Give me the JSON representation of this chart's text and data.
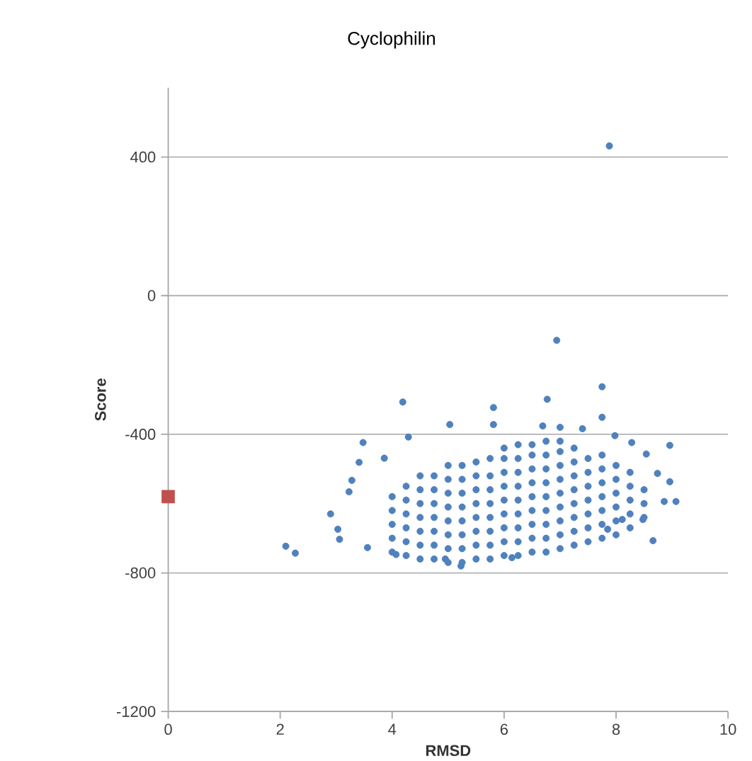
{
  "chart_data": {
    "type": "scatter",
    "title": "Cyclophilin",
    "xlabel": "RMSD",
    "ylabel": "Score",
    "xlim": [
      0,
      10
    ],
    "xticks": [
      0,
      2,
      4,
      6,
      8,
      10
    ],
    "ylim": [
      -1200,
      600
    ],
    "yticks": [
      -1200,
      -800,
      -400,
      0,
      400
    ],
    "grid": "y",
    "series": [
      {
        "color": "#4f81bd",
        "marker": "circle",
        "x": [
          7.88,
          6.94,
          7.75,
          7.75,
          6.77,
          5.81,
          5.81,
          4.19,
          5.03,
          6.69,
          7.0,
          7.4,
          7.98,
          8.28,
          8.96,
          3.48,
          4.29,
          3.41,
          3.86,
          3.28,
          3.23,
          2.9,
          3.03,
          3.06,
          2.1,
          2.27,
          8.66,
          8.96,
          9.07,
          8.86,
          8.74,
          8.54,
          5.23,
          4.95,
          6.14,
          3.56,
          4.07,
          8.11,
          8.48,
          7.85,
          4.0,
          4.0,
          4.0,
          4.0,
          4.0,
          4.25,
          4.25,
          4.25,
          4.25,
          4.25,
          4.25,
          4.5,
          4.5,
          4.5,
          4.5,
          4.5,
          4.5,
          4.5,
          4.75,
          4.75,
          4.75,
          4.75,
          4.75,
          4.75,
          4.75,
          5.0,
          5.0,
          5.0,
          5.0,
          5.0,
          5.0,
          5.0,
          5.0,
          5.25,
          5.25,
          5.25,
          5.25,
          5.25,
          5.25,
          5.25,
          5.25,
          5.5,
          5.5,
          5.5,
          5.5,
          5.5,
          5.5,
          5.5,
          5.5,
          5.75,
          5.75,
          5.75,
          5.75,
          5.75,
          5.75,
          5.75,
          5.75,
          6.0,
          6.0,
          6.0,
          6.0,
          6.0,
          6.0,
          6.0,
          6.0,
          6.0,
          6.25,
          6.25,
          6.25,
          6.25,
          6.25,
          6.25,
          6.25,
          6.25,
          6.25,
          6.5,
          6.5,
          6.5,
          6.5,
          6.5,
          6.5,
          6.5,
          6.5,
          6.5,
          6.75,
          6.75,
          6.75,
          6.75,
          6.75,
          6.75,
          6.75,
          6.75,
          6.75,
          7.0,
          7.0,
          7.0,
          7.0,
          7.0,
          7.0,
          7.0,
          7.0,
          7.0,
          7.25,
          7.25,
          7.25,
          7.25,
          7.25,
          7.25,
          7.25,
          7.25,
          7.5,
          7.5,
          7.5,
          7.5,
          7.5,
          7.5,
          7.5,
          7.75,
          7.75,
          7.75,
          7.75,
          7.75,
          7.75,
          7.75,
          8.0,
          8.0,
          8.0,
          8.0,
          8.0,
          8.0,
          8.25,
          8.25,
          8.25,
          8.25,
          8.25,
          8.5,
          8.5,
          8.5
        ],
        "values": [
          432,
          -129,
          -263,
          -351,
          -299,
          -323,
          -372,
          -307,
          -372,
          -376,
          -380,
          -384,
          -404,
          -424,
          -432,
          -424,
          -408,
          -481,
          -469,
          -533,
          -566,
          -630,
          -674,
          -703,
          -723,
          -743,
          -707,
          -537,
          -594,
          -594,
          -513,
          -457,
          -780,
          -760,
          -756,
          -727,
          -747,
          -646,
          -646,
          -674,
          -740,
          -700,
          -660,
          -620,
          -580,
          -750,
          -710,
          -670,
          -630,
          -590,
          -550,
          -760,
          -720,
          -680,
          -640,
          -600,
          -560,
          -520,
          -760,
          -720,
          -680,
          -640,
          -600,
          -560,
          -520,
          -770,
          -730,
          -690,
          -650,
          -610,
          -570,
          -530,
          -490,
          -770,
          -730,
          -690,
          -650,
          -610,
          -570,
          -530,
          -490,
          -760,
          -720,
          -680,
          -640,
          -600,
          -560,
          -520,
          -480,
          -760,
          -720,
          -680,
          -640,
          -600,
          -560,
          -520,
          -470,
          -750,
          -710,
          -670,
          -630,
          -590,
          -550,
          -510,
          -470,
          -440,
          -750,
          -710,
          -670,
          -630,
          -590,
          -550,
          -510,
          -470,
          -430,
          -740,
          -700,
          -660,
          -620,
          -580,
          -540,
          -500,
          -460,
          -430,
          -740,
          -700,
          -660,
          -620,
          -580,
          -540,
          -500,
          -460,
          -420,
          -730,
          -690,
          -650,
          -610,
          -570,
          -530,
          -490,
          -450,
          -420,
          -720,
          -680,
          -640,
          -600,
          -560,
          -520,
          -480,
          -440,
          -710,
          -670,
          -630,
          -590,
          -550,
          -510,
          -470,
          -700,
          -660,
          -620,
          -580,
          -540,
          -500,
          -460,
          -690,
          -650,
          -610,
          -570,
          -530,
          -490,
          -670,
          -630,
          -590,
          -550,
          -510,
          -640,
          -600,
          -560
        ]
      },
      {
        "color": "#c0504d",
        "marker": "square",
        "x": [
          0
        ],
        "values": [
          -580
        ]
      }
    ]
  }
}
